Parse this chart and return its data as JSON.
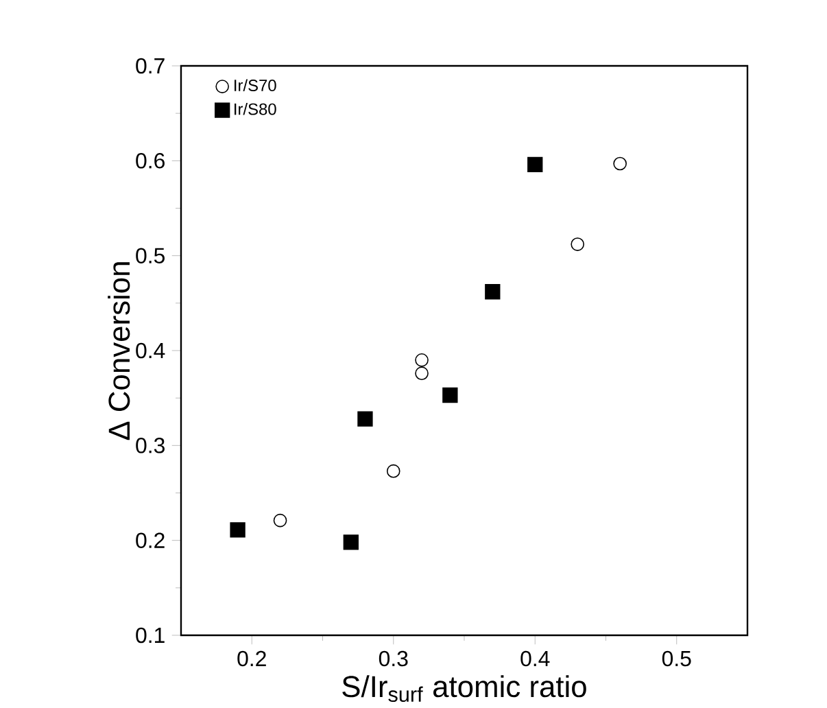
{
  "chart_data": {
    "type": "scatter",
    "xlabel": "S/Ir$_{surf}$ atomic ratio",
    "ylabel": "Δ Conversion",
    "xlim": [
      0.15,
      0.55
    ],
    "ylim": [
      0.1,
      0.7
    ],
    "xticks": [
      0.2,
      0.3,
      0.4,
      0.5
    ],
    "yticks": [
      0.1,
      0.2,
      0.3,
      0.4,
      0.5,
      0.6,
      0.7
    ],
    "legend": "top left",
    "series": [
      {
        "name": "Ir/S70",
        "color": "#000000",
        "marker": "circle",
        "x": [
          0.22,
          0.3,
          0.32,
          0.32,
          0.43,
          0.46
        ],
        "values": [
          0.221,
          0.273,
          0.39,
          0.376,
          0.512,
          0.597
        ]
      },
      {
        "name": "Ir/S80",
        "color": "#000000",
        "marker": "square",
        "x": [
          0.19,
          0.27,
          0.28,
          0.34,
          0.37,
          0.4
        ],
        "values": [
          0.211,
          0.198,
          0.328,
          0.353,
          0.462,
          0.596
        ]
      }
    ]
  }
}
